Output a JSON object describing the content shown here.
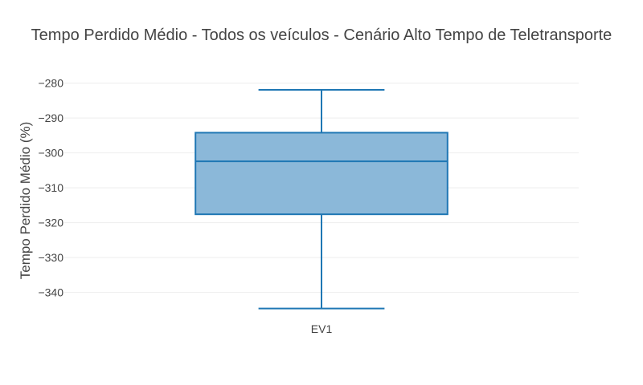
{
  "chart_data": {
    "type": "box",
    "title": "Tempo Perdido Médio - Todos os veículos - Cenário Alto Tempo de Teletransporte",
    "xlabel": "",
    "ylabel": "Tempo Perdido Médio (%)",
    "ylim": [
      -347,
      -278
    ],
    "yticks": [
      -280,
      -290,
      -300,
      -310,
      -320,
      -330,
      -340
    ],
    "ytick_labels": [
      "−280",
      "−290",
      "−300",
      "−310",
      "−320",
      "−330",
      "−340"
    ],
    "grid": true,
    "categories": [
      "EV1"
    ],
    "boxes": [
      {
        "name": "EV1",
        "lower_fence": -344.6,
        "q1": -317.6,
        "median": -302.4,
        "q3": -294.2,
        "upper_fence": -281.9
      }
    ],
    "colors": {
      "box_fill": "#8bb8d9",
      "box_line": "#1f77b4",
      "grid": "#eeeeee",
      "text": "#444444"
    }
  }
}
